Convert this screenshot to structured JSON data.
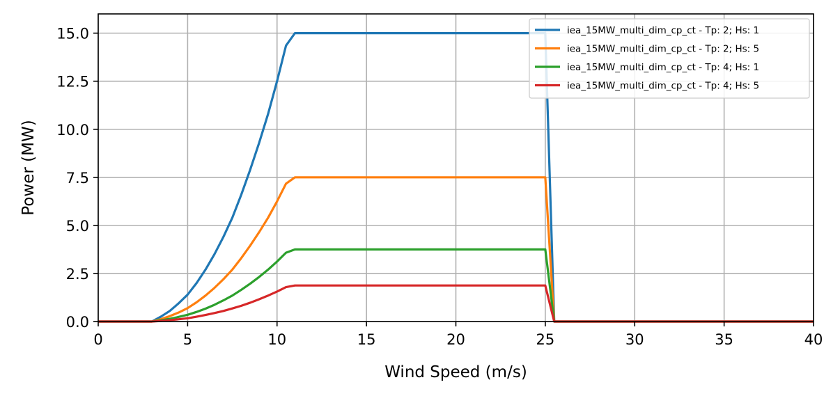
{
  "chart_data": {
    "type": "line",
    "title": "",
    "xlabel": "Wind Speed (m/s)",
    "ylabel": "Power (MW)",
    "xlim": [
      0,
      40
    ],
    "ylim": [
      0,
      16
    ],
    "xticks": [
      0,
      5,
      10,
      15,
      20,
      25,
      30,
      35,
      40
    ],
    "xtick_labels": [
      "0",
      "5",
      "10",
      "15",
      "20",
      "25",
      "30",
      "35",
      "40"
    ],
    "yticks": [
      0,
      2.5,
      5,
      7.5,
      10,
      12.5,
      15
    ],
    "ytick_labels": [
      "0.0",
      "2.5",
      "5.0",
      "7.5",
      "10.0",
      "12.5",
      "15.0"
    ],
    "grid": true,
    "legend_position": "top-right",
    "x": [
      0,
      3,
      3.5,
      4,
      4.5,
      5,
      5.5,
      6,
      6.5,
      7,
      7.5,
      8,
      8.5,
      9,
      9.5,
      10,
      10.5,
      11,
      24,
      25,
      25.5,
      40
    ],
    "series": [
      {
        "name": "iea_15MW_multi_dim_cp_ct - Tp: 2; Hs: 1",
        "color": "#1f77b4",
        "values": [
          0,
          0,
          0.25,
          0.55,
          0.95,
          1.4,
          2.0,
          2.7,
          3.5,
          4.4,
          5.4,
          6.6,
          7.9,
          9.3,
          10.8,
          12.5,
          14.35,
          15.0,
          15.0,
          15.0,
          0,
          0
        ]
      },
      {
        "name": "iea_15MW_multi_dim_cp_ct - Tp: 2; Hs: 5",
        "color": "#ff7f0e",
        "values": [
          0,
          0,
          0.12,
          0.28,
          0.47,
          0.7,
          1.0,
          1.35,
          1.75,
          2.2,
          2.7,
          3.3,
          3.95,
          4.65,
          5.4,
          6.25,
          7.17,
          7.5,
          7.5,
          7.5,
          0,
          0
        ]
      },
      {
        "name": "iea_15MW_multi_dim_cp_ct - Tp: 4; Hs: 1",
        "color": "#2ca02c",
        "values": [
          0,
          0,
          0.06,
          0.14,
          0.24,
          0.35,
          0.5,
          0.67,
          0.87,
          1.1,
          1.35,
          1.65,
          1.97,
          2.32,
          2.7,
          3.12,
          3.58,
          3.75,
          3.75,
          3.75,
          0,
          0
        ]
      },
      {
        "name": "iea_15MW_multi_dim_cp_ct - Tp: 4; Hs: 5",
        "color": "#d62728",
        "values": [
          0,
          0,
          0.03,
          0.07,
          0.12,
          0.17,
          0.25,
          0.34,
          0.44,
          0.55,
          0.68,
          0.82,
          0.98,
          1.16,
          1.35,
          1.56,
          1.79,
          1.875,
          1.875,
          1.875,
          0,
          0
        ]
      }
    ]
  }
}
